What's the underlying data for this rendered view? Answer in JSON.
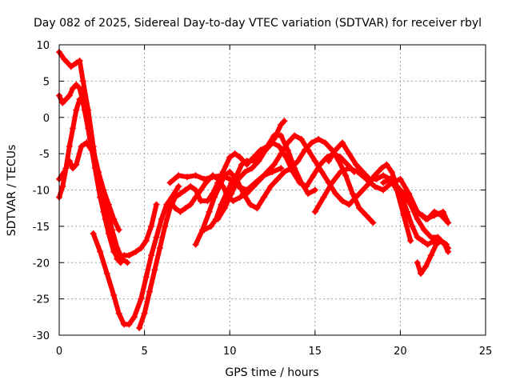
{
  "chart_data": {
    "type": "scatter",
    "title": "Day 082 of 2025, Sidereal Day-to-day VTEC variation (SDTVAR) for receiver rbyl",
    "xlabel": "GPS time / hours",
    "ylabel": "SDTVAR / TECUs",
    "xlim": [
      0,
      25
    ],
    "ylim": [
      -30,
      10
    ],
    "xticks": [
      "0",
      "5",
      "10",
      "15",
      "20",
      "25"
    ],
    "yticks": [
      "10",
      "5",
      "0",
      "-5",
      "-10",
      "-15",
      "-20",
      "-25",
      "-30"
    ],
    "grid": true,
    "marker": "+",
    "color": "#ff0000",
    "series": [
      {
        "name": "s1",
        "x": [
          0.0,
          0.3,
          0.7,
          1.0,
          1.2,
          1.4,
          1.7,
          2.0,
          2.3,
          2.6,
          2.9,
          3.2,
          3.5,
          3.8,
          4.1,
          4.5,
          4.8,
          5.1,
          5.4,
          5.7
        ],
        "y": [
          9.0,
          8.0,
          7.0,
          7.5,
          7.8,
          5.0,
          1.0,
          -4.0,
          -9.0,
          -13.0,
          -16.0,
          -18.5,
          -19.5,
          -19.0,
          -19.0,
          -18.5,
          -18.0,
          -17.0,
          -15.0,
          -12.0
        ]
      },
      {
        "name": "s2",
        "x": [
          0.0,
          0.2,
          0.4,
          0.6,
          0.8,
          1.0,
          1.2,
          1.5,
          1.8,
          2.1,
          2.4,
          2.7,
          3.0,
          3.2,
          3.4,
          3.6
        ],
        "y": [
          3.0,
          2.0,
          2.5,
          3.0,
          4.0,
          4.5,
          4.0,
          1.0,
          -3.0,
          -7.0,
          -11.0,
          -14.0,
          -16.5,
          -18.0,
          -19.5,
          -20.0
        ]
      },
      {
        "name": "s3",
        "x": [
          0.0,
          0.2,
          0.4,
          0.6,
          0.8,
          1.0,
          1.2,
          1.4,
          1.7,
          2.0,
          2.3,
          2.6,
          2.9,
          3.2,
          3.5
        ],
        "y": [
          -11.0,
          -9.5,
          -7.0,
          -4.0,
          -1.5,
          1.0,
          2.5,
          2.0,
          -1.5,
          -4.5,
          -7.5,
          -10.0,
          -12.0,
          -14.0,
          -15.5
        ]
      },
      {
        "name": "s4",
        "x": [
          0.0,
          0.3,
          0.6,
          0.8,
          1.0,
          1.3,
          1.6,
          1.9,
          2.2,
          2.5,
          2.8,
          3.1,
          3.4,
          3.7,
          4.0
        ],
        "y": [
          -8.5,
          -7.5,
          -6.0,
          -7.0,
          -6.5,
          -4.0,
          -3.5,
          -4.5,
          -7.0,
          -9.5,
          -12.5,
          -15.5,
          -18.0,
          -19.5,
          -20.0
        ]
      },
      {
        "name": "s5",
        "x": [
          2.0,
          2.4,
          2.8,
          3.2,
          3.5,
          3.8,
          4.1,
          4.4,
          4.8,
          5.1,
          5.4,
          5.7,
          6.0,
          6.3,
          6.6,
          7.0
        ],
        "y": [
          -16.0,
          -18.5,
          -21.5,
          -24.5,
          -27.0,
          -28.5,
          -28.5,
          -27.5,
          -25.0,
          -22.0,
          -19.0,
          -16.5,
          -14.0,
          -12.0,
          -11.0,
          -9.5
        ]
      },
      {
        "name": "s6",
        "x": [
          4.7,
          5.0,
          5.3,
          5.6,
          5.9,
          6.2,
          6.5,
          6.8,
          7.1,
          7.4,
          7.7,
          8.0,
          8.3,
          8.7,
          9.0,
          9.3,
          9.6,
          10.0,
          10.3,
          10.6,
          11.0,
          11.4,
          11.8,
          12.2,
          12.6,
          13.0,
          13.2
        ],
        "y": [
          -29.0,
          -27.0,
          -24.0,
          -21.0,
          -18.0,
          -15.0,
          -12.5,
          -11.0,
          -10.5,
          -10.0,
          -9.5,
          -10.0,
          -11.5,
          -11.5,
          -10.5,
          -9.0,
          -7.5,
          -5.5,
          -5.0,
          -5.5,
          -6.5,
          -5.5,
          -4.5,
          -4.0,
          -3.0,
          -1.0,
          -0.5
        ]
      },
      {
        "name": "s7",
        "x": [
          6.5,
          6.8,
          7.1,
          7.4,
          7.7,
          8.0,
          8.3,
          8.6,
          9.0,
          9.3,
          9.6,
          9.9,
          10.2,
          10.6,
          11.0,
          11.4,
          11.8,
          12.2,
          12.6,
          13.0,
          13.4,
          13.8,
          14.2,
          14.6,
          15.0,
          15.4,
          15.8,
          16.2,
          16.6,
          17.0,
          17.4,
          17.8,
          18.2,
          18.5
        ],
        "y": [
          -11.5,
          -12.5,
          -13.0,
          -12.5,
          -12.0,
          -11.0,
          -10.0,
          -9.0,
          -8.0,
          -8.5,
          -9.5,
          -11.0,
          -11.5,
          -11.0,
          -10.5,
          -9.5,
          -8.5,
          -7.5,
          -6.5,
          -5.0,
          -3.5,
          -2.5,
          -3.0,
          -4.5,
          -6.0,
          -7.5,
          -9.0,
          -10.5,
          -11.5,
          -12.0,
          -11.0,
          -10.0,
          -9.0,
          -8.0
        ]
      },
      {
        "name": "s8",
        "x": [
          6.5,
          7.0,
          7.5,
          8.0,
          8.5,
          9.0,
          9.5,
          10.0,
          10.5,
          11.0,
          11.5,
          12.0,
          12.5,
          13.0
        ],
        "y": [
          -9.0,
          -8.0,
          -8.2,
          -8.0,
          -8.5,
          -8.2,
          -8.0,
          -8.5,
          -9.5,
          -10.0,
          -9.0,
          -8.0,
          -7.5,
          -7.0
        ]
      },
      {
        "name": "s9",
        "x": [
          8.0,
          8.4,
          8.8,
          9.1,
          9.4,
          9.7,
          10.0,
          10.4,
          10.8,
          11.2,
          11.6,
          12.0,
          12.4,
          12.8,
          13.2,
          13.6,
          14.0,
          14.4,
          14.8,
          15.2,
          15.6,
          16.0,
          16.4,
          16.8,
          17.2,
          17.6,
          18.0,
          18.4
        ],
        "y": [
          -17.5,
          -15.5,
          -13.0,
          -11.0,
          -9.5,
          -8.0,
          -7.5,
          -8.5,
          -10.5,
          -12.0,
          -12.5,
          -11.0,
          -9.5,
          -8.5,
          -7.5,
          -7.0,
          -6.0,
          -4.5,
          -3.5,
          -3.0,
          -3.5,
          -4.5,
          -6.0,
          -8.0,
          -10.5,
          -12.5,
          -13.5,
          -14.5
        ]
      },
      {
        "name": "s10",
        "x": [
          8.5,
          8.9,
          9.2,
          9.5,
          9.8,
          10.1,
          10.4,
          10.7,
          11.0,
          11.4,
          11.8,
          12.2,
          12.6,
          13.0,
          13.4,
          13.8,
          14.2,
          14.6,
          15.0
        ],
        "y": [
          -15.5,
          -15.0,
          -14.0,
          -12.0,
          -10.5,
          -9.0,
          -8.0,
          -6.5,
          -6.0,
          -6.0,
          -5.5,
          -4.0,
          -2.5,
          -2.5,
          -4.5,
          -7.0,
          -9.0,
          -10.5,
          -10.0
        ]
      },
      {
        "name": "s11",
        "x": [
          9.3,
          9.7,
          10.1,
          10.5,
          10.9,
          11.3,
          11.7,
          12.1,
          12.5,
          12.9,
          13.3,
          13.7,
          14.1,
          14.5,
          14.9,
          15.3,
          15.7,
          16.1,
          16.5,
          16.9,
          17.3
        ],
        "y": [
          -14.0,
          -12.5,
          -10.5,
          -8.5,
          -7.5,
          -7.0,
          -6.0,
          -4.5,
          -3.5,
          -4.0,
          -5.5,
          -7.5,
          -9.0,
          -9.5,
          -8.0,
          -6.5,
          -5.5,
          -5.0,
          -5.5,
          -6.5,
          -7.5
        ]
      },
      {
        "name": "s12",
        "x": [
          15.0,
          15.5,
          16.0,
          16.5,
          17.0,
          17.5,
          18.0,
          18.5,
          19.0,
          19.5,
          20.0,
          20.5,
          21.0,
          21.5,
          22.0,
          22.5,
          22.8
        ],
        "y": [
          -13.0,
          -11.0,
          -9.0,
          -7.5,
          -7.0,
          -7.5,
          -8.5,
          -9.5,
          -10.0,
          -9.0,
          -8.5,
          -10.5,
          -13.0,
          -14.0,
          -13.5,
          -13.0,
          -14.5
        ]
      },
      {
        "name": "s13",
        "x": [
          15.8,
          16.2,
          16.6,
          17.0,
          17.4,
          17.8,
          18.2,
          18.6,
          19.0,
          19.4,
          19.8,
          20.2,
          20.6
        ],
        "y": [
          -6.0,
          -4.5,
          -3.5,
          -5.0,
          -6.5,
          -7.5,
          -8.5,
          -8.5,
          -8.0,
          -8.5,
          -10.0,
          -13.5,
          -17.0
        ]
      },
      {
        "name": "s14",
        "x": [
          18.5,
          18.9,
          19.2,
          19.5,
          19.8,
          20.1,
          20.4,
          20.7,
          21.0,
          21.3,
          21.6,
          22.0,
          22.4,
          22.8
        ],
        "y": [
          -8.0,
          -7.0,
          -6.5,
          -7.5,
          -9.5,
          -11.0,
          -13.0,
          -15.0,
          -16.5,
          -17.0,
          -17.5,
          -17.0,
          -17.0,
          -18.0
        ]
      },
      {
        "name": "s15",
        "x": [
          19.0,
          19.4,
          19.8,
          20.2,
          20.6,
          21.0,
          21.4,
          21.8,
          22.2,
          22.6,
          22.8
        ],
        "y": [
          -9.0,
          -8.5,
          -9.5,
          -10.5,
          -12.0,
          -14.0,
          -15.5,
          -16.5,
          -16.5,
          -17.5,
          -18.5
        ]
      },
      {
        "name": "s16",
        "x": [
          21.0,
          21.2,
          21.5,
          21.8,
          22.1,
          22.4,
          22.7
        ],
        "y": [
          -20.0,
          -21.5,
          -20.5,
          -19.0,
          -17.5,
          -17.0,
          -17.5
        ]
      },
      {
        "name": "s17",
        "x": [
          21.3,
          21.6,
          22.0,
          22.4,
          22.8
        ],
        "y": [
          -13.5,
          -14.0,
          -13.0,
          -13.5,
          -14.5
        ]
      }
    ]
  }
}
